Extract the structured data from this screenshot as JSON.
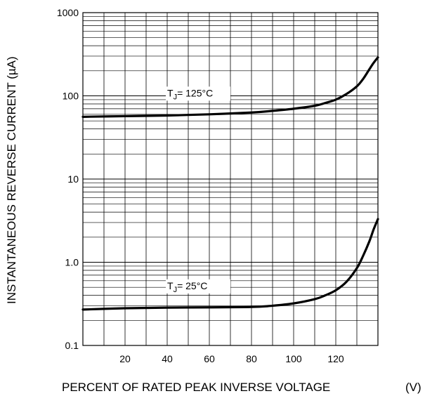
{
  "chart_data": {
    "type": "line",
    "y_scale": "log",
    "xlabel": "PERCENT OF RATED PEAK INVERSE VOLTAGE",
    "xlabel_unit": "(V)",
    "ylabel": "INSTANTANEOUS REVERSE CURRENT (µA)",
    "xlim": [
      0,
      140
    ],
    "ylim": [
      0.1,
      1000
    ],
    "x_ticks": [
      20,
      40,
      60,
      80,
      100,
      120
    ],
    "y_ticks": [
      {
        "value": 0.1,
        "label": "0.1"
      },
      {
        "value": 1,
        "label": "1.0"
      },
      {
        "value": 10,
        "label": "10"
      },
      {
        "value": 100,
        "label": "100"
      },
      {
        "value": 1000,
        "label": "1000"
      }
    ],
    "grid": true,
    "series": [
      {
        "name": "TJ= 125°C",
        "label_main": "T",
        "label_sub": "J",
        "label_rest": "= 125°C",
        "x": [
          0,
          20,
          40,
          60,
          80,
          90,
          100,
          110,
          115,
          120,
          125,
          130,
          133,
          136,
          138,
          140
        ],
        "values": [
          56,
          57,
          58,
          60,
          63,
          66,
          70,
          76,
          82,
          90,
          105,
          130,
          160,
          210,
          250,
          290
        ]
      },
      {
        "name": "TJ= 25°C",
        "label_main": "T",
        "label_sub": "J",
        "label_rest": "= 25°C",
        "x": [
          0,
          20,
          40,
          60,
          80,
          90,
          100,
          110,
          115,
          120,
          125,
          130,
          133,
          136,
          138,
          140
        ],
        "values": [
          0.27,
          0.28,
          0.285,
          0.287,
          0.29,
          0.3,
          0.32,
          0.36,
          0.4,
          0.46,
          0.58,
          0.85,
          1.2,
          1.8,
          2.5,
          3.3
        ]
      }
    ]
  }
}
